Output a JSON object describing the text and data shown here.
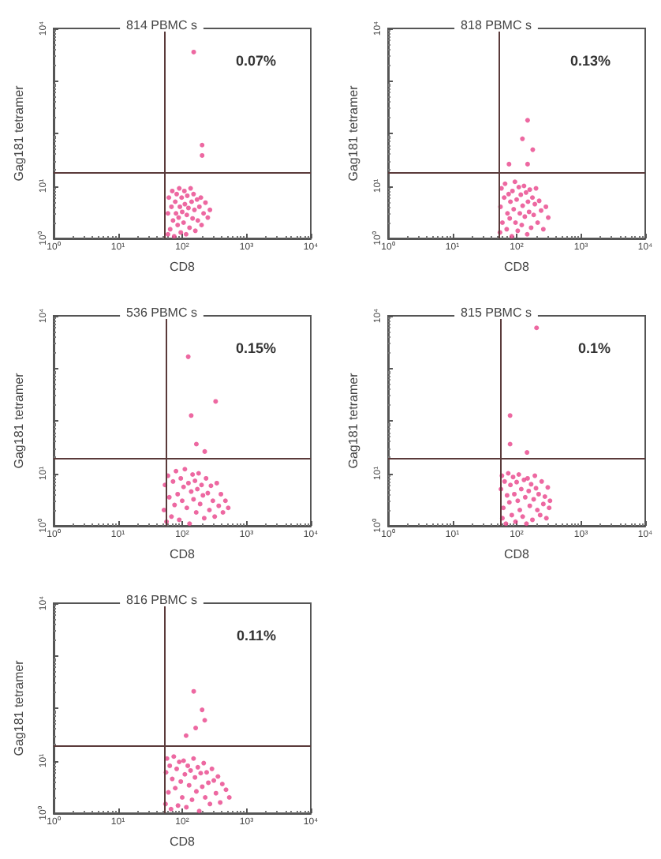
{
  "chart_data": [
    {
      "type": "scatter",
      "title": "814 PBMC s",
      "xlabel": "CD8",
      "ylabel": "Gag181 tetramer",
      "annotations": [
        "0.07%"
      ],
      "color": "#e8428a",
      "marker": "circle",
      "grid": false,
      "log": "xy",
      "xlim": [
        1,
        10000
      ],
      "ylim": [
        1,
        10000
      ],
      "xticks": [
        {
          "value": 1,
          "label": "10⁰"
        },
        {
          "value": 10,
          "label": "10¹"
        },
        {
          "value": 100,
          "label": "10²"
        },
        {
          "value": 1000,
          "label": "10³"
        },
        {
          "value": 10000,
          "label": "10⁴"
        }
      ],
      "yticks": [
        {
          "value": 1,
          "label": "10⁰"
        },
        {
          "value": 10,
          "label": "10¹"
        },
        {
          "value": 100,
          "label": null
        },
        {
          "value": 1000,
          "label": null
        },
        {
          "value": 10000,
          "label": "10⁴"
        }
      ],
      "ref_lines": [
        {
          "axis": "x",
          "value": 54,
          "color": "#5a3a3a"
        },
        {
          "axis": "y",
          "value": 18,
          "color": "#5a3a3a"
        }
      ],
      "x": [
        60,
        60,
        62,
        65,
        68,
        70,
        72,
        75,
        78,
        80,
        82,
        85,
        88,
        90,
        92,
        95,
        98,
        100,
        105,
        108,
        110,
        115,
        118,
        120,
        125,
        130,
        135,
        140,
        145,
        150,
        155,
        160,
        170,
        175,
        185,
        195,
        200,
        215,
        230,
        250,
        270,
        151,
        204,
        204
      ],
      "values": [
        1.2,
        3,
        6,
        1.5,
        4,
        8,
        2.2,
        1.1,
        5,
        3,
        7,
        1.8,
        2.5,
        9,
        4,
        1.3,
        6,
        3.2,
        2,
        8,
        4.5,
        1.2,
        2.8,
        6.5,
        3.8,
        1.6,
        9,
        5,
        2.4,
        7,
        3.5,
        1.4,
        5.5,
        2.2,
        4,
        6,
        1.8,
        3,
        4.8,
        2.5,
        3.5,
        3550,
        60,
        38
      ]
    },
    {
      "type": "scatter",
      "title": "818 PBMC s",
      "xlabel": "CD8",
      "ylabel": "Gag181 tetramer",
      "annotations": [
        "0.13%"
      ],
      "color": "#e8428a",
      "marker": "circle",
      "grid": false,
      "log": "xy",
      "xlim": [
        1,
        10000
      ],
      "ylim": [
        1,
        10000
      ],
      "xticks": [
        {
          "value": 1,
          "label": "10⁰"
        },
        {
          "value": 10,
          "label": "10¹"
        },
        {
          "value": 100,
          "label": "10²"
        },
        {
          "value": 1000,
          "label": "10³"
        },
        {
          "value": 10000,
          "label": "10⁴"
        }
      ],
      "yticks": [
        {
          "value": 1,
          "label": "10⁰"
        },
        {
          "value": 10,
          "label": "10¹"
        },
        {
          "value": 100,
          "label": null
        },
        {
          "value": 1000,
          "label": null
        },
        {
          "value": 10000,
          "label": "10⁴"
        }
      ],
      "ref_lines": [
        {
          "axis": "x",
          "value": 52,
          "color": "#5a3a3a"
        },
        {
          "axis": "y",
          "value": 18,
          "color": "#5a3a3a"
        }
      ],
      "x": [
        55,
        56,
        58,
        60,
        64,
        66,
        70,
        72,
        75,
        78,
        80,
        84,
        86,
        90,
        94,
        96,
        100,
        104,
        108,
        112,
        116,
        120,
        124,
        130,
        134,
        140,
        146,
        150,
        156,
        160,
        168,
        176,
        184,
        192,
        200,
        212,
        224,
        240,
        260,
        285,
        310,
        148,
        123,
        178,
        76,
        148
      ],
      "values": [
        1.3,
        4,
        9,
        2,
        6,
        11,
        1.5,
        3,
        7,
        2.4,
        5,
        1.1,
        8,
        3.6,
        12,
        2,
        5.5,
        1.4,
        9.5,
        3,
        6.8,
        1.8,
        4.2,
        10,
        2.6,
        7.5,
        1.2,
        5,
        3.2,
        8.5,
        1.6,
        6,
        2.8,
        4.5,
        9,
        2,
        5.2,
        3.4,
        1.5,
        4,
        2.5,
        178,
        79,
        49,
        26,
        26
      ]
    },
    {
      "type": "scatter",
      "title": "536 PBMC s",
      "xlabel": "CD8",
      "ylabel": "Gag181 tetramer",
      "annotations": [
        "0.15%"
      ],
      "color": "#e8428a",
      "marker": "circle",
      "grid": false,
      "log": "xy",
      "xlim": [
        1,
        10000
      ],
      "ylim": [
        1,
        10000
      ],
      "xticks": [
        {
          "value": 1,
          "label": "10⁰"
        },
        {
          "value": 10,
          "label": "10¹"
        },
        {
          "value": 100,
          "label": "10²"
        },
        {
          "value": 1000,
          "label": "10³"
        },
        {
          "value": 10000,
          "label": "10⁴"
        }
      ],
      "yticks": [
        {
          "value": 1,
          "label": "10⁰"
        },
        {
          "value": 10,
          "label": "10¹"
        },
        {
          "value": 100,
          "label": null
        },
        {
          "value": 1000,
          "label": null
        },
        {
          "value": 10000,
          "label": "10⁴"
        }
      ],
      "ref_lines": [
        {
          "axis": "x",
          "value": 56,
          "color": "#5a3a3a"
        },
        {
          "axis": "y",
          "value": 19,
          "color": "#5a3a3a"
        }
      ],
      "x": [
        52,
        54,
        57,
        60,
        63,
        68,
        72,
        76,
        80,
        85,
        90,
        95,
        100,
        105,
        110,
        118,
        125,
        130,
        138,
        145,
        150,
        158,
        165,
        172,
        180,
        190,
        200,
        210,
        220,
        235,
        250,
        265,
        280,
        300,
        320,
        345,
        370,
        400,
        430,
        470,
        520,
        124,
        331,
        138,
        166,
        224
      ],
      "values": [
        2,
        6,
        1.2,
        9,
        3.5,
        1.5,
        7,
        2.5,
        11,
        4,
        1.3,
        8,
        3,
        5.5,
        12,
        2.2,
        6.5,
        1.1,
        4.5,
        9.5,
        3.2,
        7.2,
        1.8,
        5,
        10,
        2.6,
        6,
        3.8,
        1.4,
        8,
        4.2,
        2,
        5.8,
        3,
        1.5,
        6.5,
        2.4,
        4,
        1.8,
        3,
        2.2,
        1660,
        234,
        126,
        36,
        26
      ]
    },
    {
      "type": "scatter",
      "title": "815 PBMC s",
      "xlabel": "CD8",
      "ylabel": "Gag181 tetramer",
      "annotations": [
        "0.1%"
      ],
      "color": "#e8428a",
      "marker": "circle",
      "grid": false,
      "log": "xy",
      "xlim": [
        1,
        10000
      ],
      "ylim": [
        1,
        10000
      ],
      "xticks": [
        {
          "value": 1,
          "label": "10⁰"
        },
        {
          "value": 10,
          "label": "10¹"
        },
        {
          "value": 100,
          "label": "10²"
        },
        {
          "value": 1000,
          "label": "10³"
        },
        {
          "value": 10000,
          "label": "10⁴"
        }
      ],
      "yticks": [
        {
          "value": 1,
          "label": "10⁰"
        },
        {
          "value": 10,
          "label": "10¹"
        },
        {
          "value": 100,
          "label": null
        },
        {
          "value": 1000,
          "label": null
        },
        {
          "value": 10000,
          "label": "10⁴"
        }
      ],
      "ref_lines": [
        {
          "axis": "x",
          "value": 55,
          "color": "#5a3a3a"
        },
        {
          "axis": "y",
          "value": 19,
          "color": "#5a3a3a"
        }
      ],
      "x": [
        60,
        57,
        59,
        62,
        65,
        68,
        71,
        74,
        77,
        80,
        84,
        88,
        92,
        96,
        100,
        104,
        108,
        112,
        118,
        124,
        130,
        136,
        142,
        148,
        154,
        160,
        168,
        176,
        184,
        192,
        200,
        210,
        220,
        232,
        245,
        260,
        275,
        290,
        305,
        320,
        330,
        204,
        79,
        79,
        145
      ],
      "values": [
        1.4,
        5,
        9,
        2.2,
        7,
        1.1,
        3.8,
        10,
        2.8,
        6,
        1.6,
        8.5,
        4,
        1.2,
        6.8,
        3,
        9.5,
        2,
        5,
        1.5,
        7.5,
        3.5,
        1.1,
        8,
        4.6,
        2.4,
        6.2,
        1.3,
        3.2,
        9,
        5.2,
        2,
        4,
        1.6,
        7,
        2.6,
        3.6,
        1.4,
        5.4,
        2.2,
        3,
        5900,
        126,
        36,
        25
      ]
    },
    {
      "type": "scatter",
      "title": "816 PBMC s",
      "xlabel": "CD8",
      "ylabel": "Gag181 tetramer",
      "annotations": [
        "0.11%"
      ],
      "color": "#e8428a",
      "marker": "circle",
      "grid": false,
      "log": "xy",
      "xlim": [
        1,
        10000
      ],
      "ylim": [
        1,
        10000
      ],
      "xticks": [
        {
          "value": 1,
          "label": "10⁰"
        },
        {
          "value": 10,
          "label": "10¹"
        },
        {
          "value": 100,
          "label": "10²"
        },
        {
          "value": 1000,
          "label": "10³"
        },
        {
          "value": 10000,
          "label": "10⁴"
        }
      ],
      "yticks": [
        {
          "value": 1,
          "label": "10⁰"
        },
        {
          "value": 10,
          "label": "10¹"
        },
        {
          "value": 100,
          "label": null
        },
        {
          "value": 1000,
          "label": null
        },
        {
          "value": 10000,
          "label": "10⁴"
        }
      ],
      "ref_lines": [
        {
          "axis": "x",
          "value": 54,
          "color": "#5a3a3a"
        },
        {
          "axis": "y",
          "value": 19,
          "color": "#5a3a3a"
        }
      ],
      "x": [
        55,
        56,
        58,
        61,
        64,
        67,
        70,
        74,
        78,
        82,
        86,
        90,
        95,
        100,
        105,
        110,
        116,
        122,
        128,
        135,
        142,
        150,
        158,
        166,
        175,
        184,
        194,
        205,
        216,
        228,
        240,
        255,
        270,
        290,
        310,
        335,
        360,
        390,
        420,
        480,
        540,
        151,
        204,
        224,
        162,
        115
      ],
      "values": [
        1.5,
        6,
        11,
        2.5,
        8,
        1.2,
        4.5,
        12,
        3,
        7,
        1.4,
        9.5,
        4,
        2,
        10,
        5.5,
        1.3,
        8,
        3.4,
        6.5,
        1.8,
        11,
        4.8,
        2.6,
        7.5,
        1.1,
        5.8,
        3.2,
        9,
        2,
        6,
        3.8,
        1.5,
        7,
        4.2,
        2.4,
        5,
        1.6,
        3.6,
        2.8,
        2,
        209,
        93,
        59,
        42,
        30
      ]
    }
  ]
}
